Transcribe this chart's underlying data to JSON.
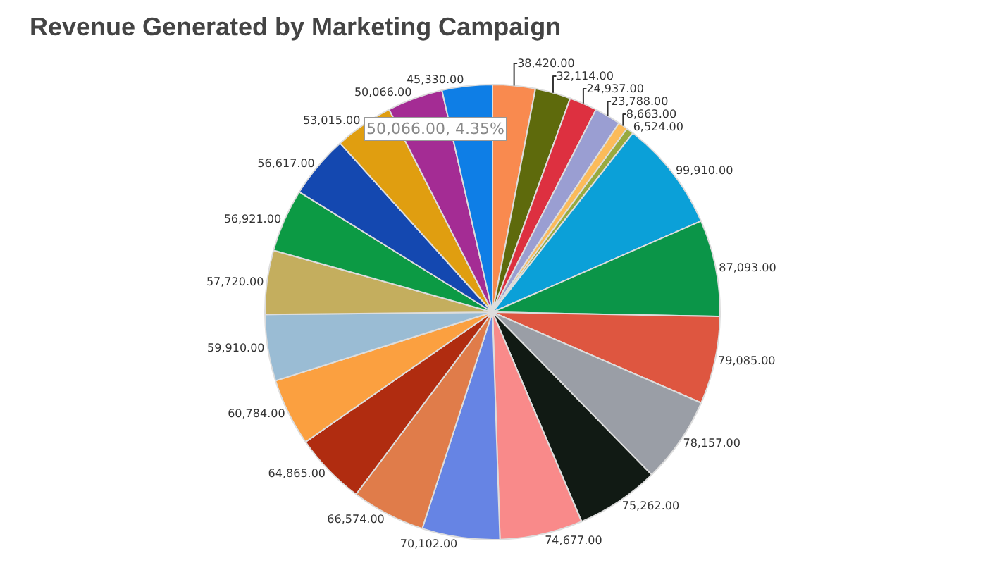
{
  "chart_data": {
    "type": "pie",
    "title": "Revenue Generated by Marketing Campaign",
    "categories": [
      null,
      null,
      null,
      null,
      null,
      null,
      null,
      null,
      null,
      null,
      null,
      null,
      null,
      null,
      null,
      null,
      null,
      null,
      null,
      null,
      null,
      null,
      null
    ],
    "values": [
      38420,
      32114,
      24937,
      23788,
      8663,
      6524,
      99910,
      87093,
      79085,
      78157,
      75262,
      74677,
      70102,
      66574,
      64865,
      60784,
      59910,
      57720,
      56921,
      56617,
      53015,
      50066,
      45330
    ],
    "value_labels": [
      "38,420.00",
      "32,114.00",
      "24,937.00",
      "23,788.00",
      "8,663.00",
      "6,524.00",
      "99,910.00",
      "87,093.00",
      "79,085.00",
      "78,157.00",
      "75,262.00",
      "74,677.00",
      "70,102.00",
      "66,574.00",
      "64,865.00",
      "60,784.00",
      "59,910.00",
      "57,720.00",
      "56,921.00",
      "56,617.00",
      "53,015.00",
      "50,066.00",
      "45,330.00"
    ],
    "colors": [
      "#f98a4f",
      "#5e6a0c",
      "#dd3040",
      "#9a9ed2",
      "#fbbb5a",
      "#98aa3e",
      "#0ba0d8",
      "#0b9548",
      "#de5640",
      "#9a9ea6",
      "#111a14",
      "#f98a8a",
      "#6684e4",
      "#e07c4a",
      "#b02c10",
      "#fba040",
      "#9abcd4",
      "#c4ae5e",
      "#0c9a44",
      "#1448b0",
      "#e09e10",
      "#a42c94",
      "#0e7ee6"
    ],
    "legend": false,
    "annotations": [
      "50,066.00, 4.35%"
    ]
  }
}
